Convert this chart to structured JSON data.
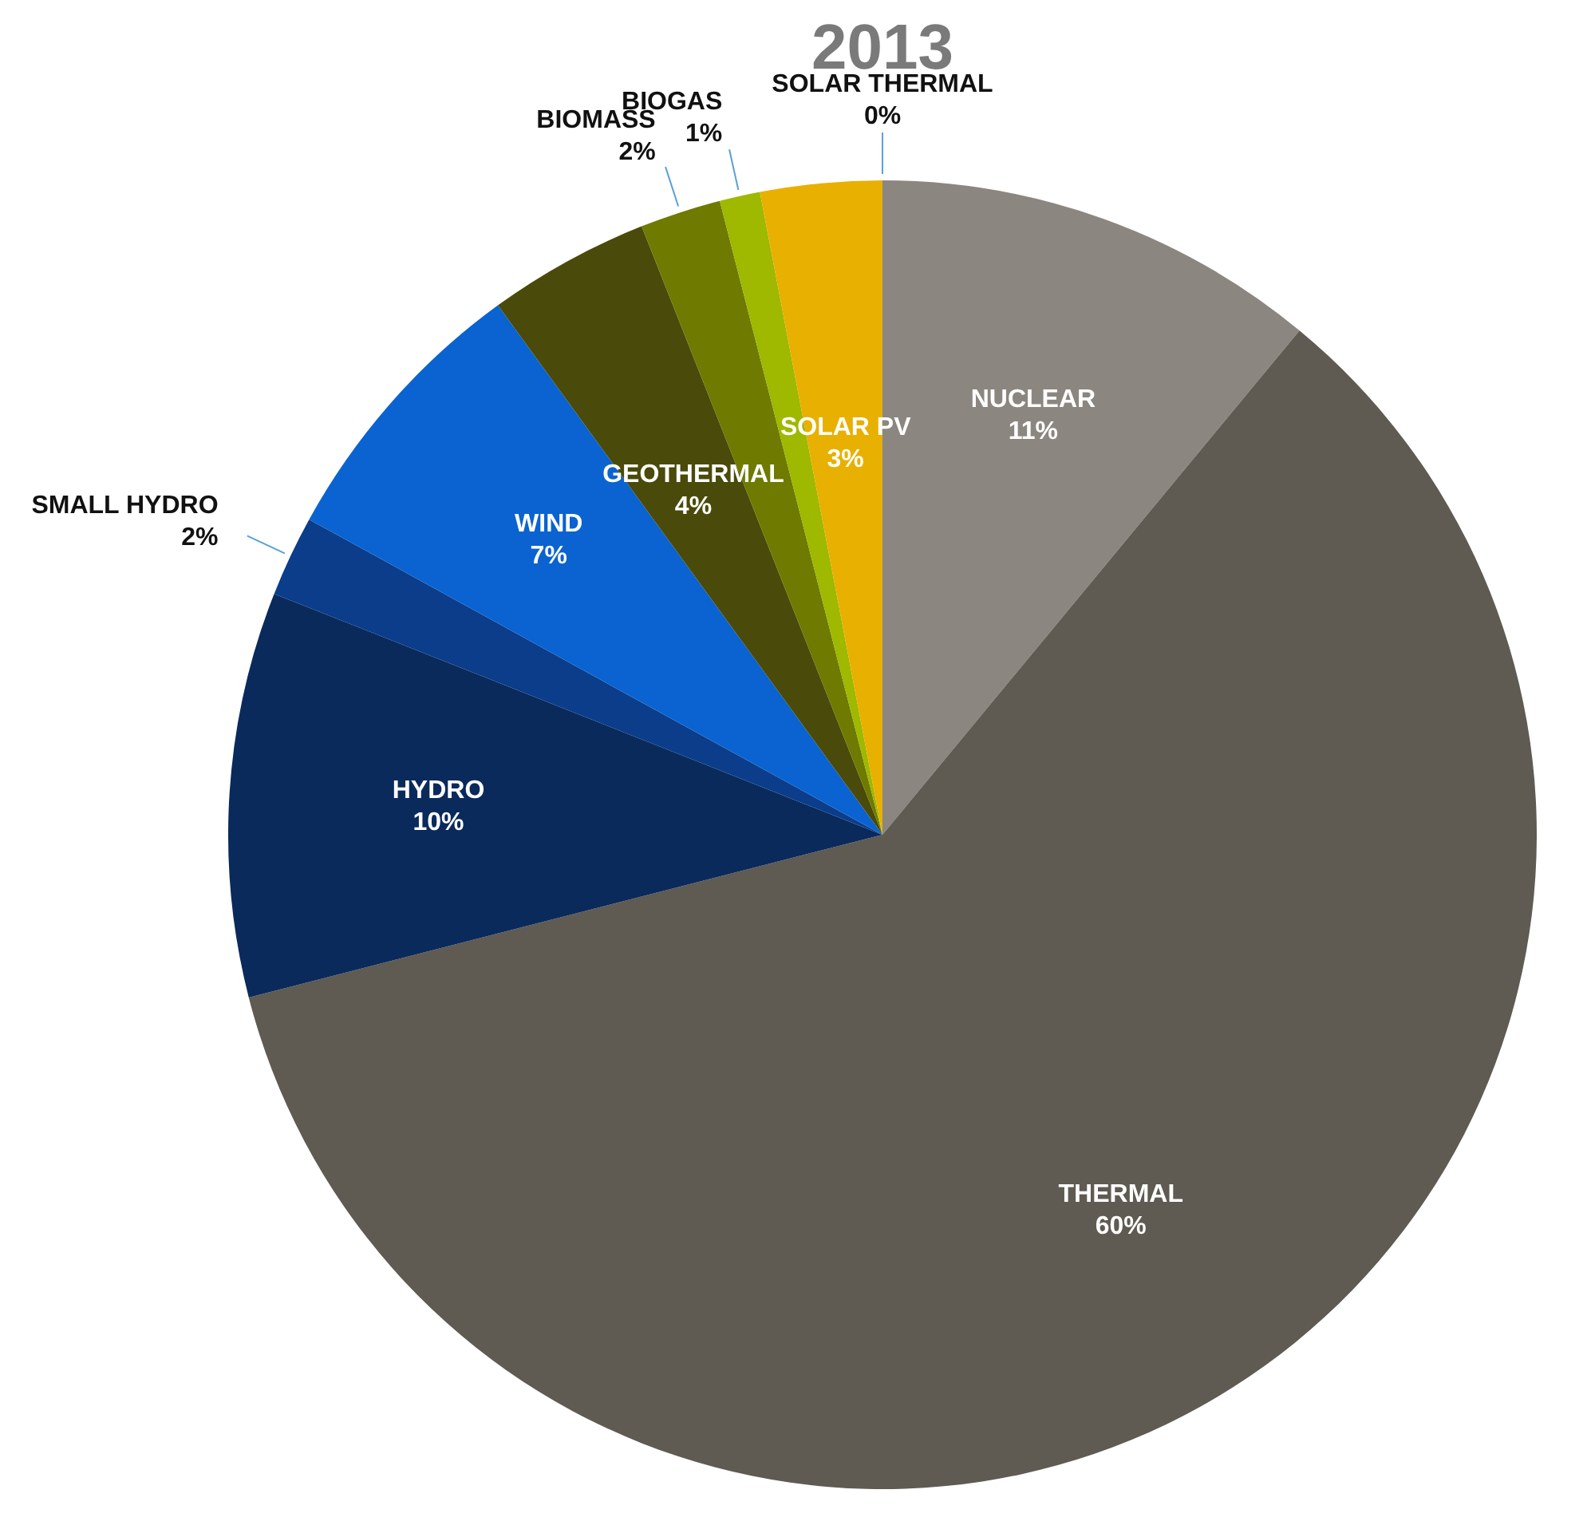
{
  "chart_data": {
    "type": "pie",
    "title": "2013",
    "categories": [
      "NUCLEAR",
      "THERMAL",
      "HYDRO",
      "SMALL HYDRO",
      "WIND",
      "GEOTHERMAL",
      "BIOMASS",
      "BIOGAS",
      "SOLAR PV",
      "SOLAR THERMAL"
    ],
    "values": [
      11,
      60,
      10,
      2,
      7,
      4,
      2,
      1,
      3,
      0
    ],
    "colors": [
      "#8c8680",
      "#5f5a52",
      "#0a2a5c",
      "#0b3d8a",
      "#0a63d0",
      "#4a4a0a",
      "#6e7a00",
      "#9fb800",
      "#e8b000",
      "#b07a00"
    ],
    "value_labels": [
      "11%",
      "60%",
      "10%",
      "2%",
      "7%",
      "4%",
      "2%",
      "1%",
      "3%",
      "0%"
    ],
    "legend": false
  }
}
